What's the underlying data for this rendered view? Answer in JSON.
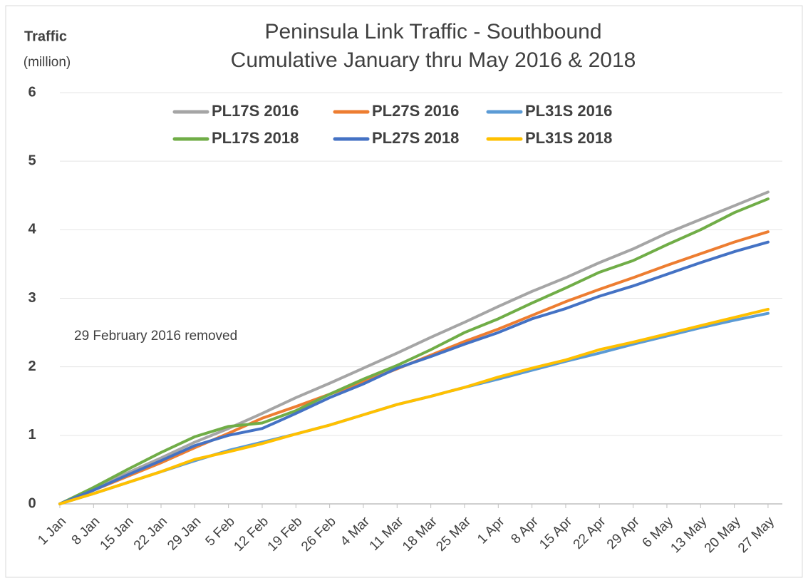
{
  "chart_data": {
    "type": "line",
    "title": "Peninsula Link Traffic - Southbound",
    "subtitle": "Cumulative January thru May 2016 & 2018",
    "y_label": "Traffic",
    "y_label_unit": "(million)",
    "annotation": "29 February 2016 removed",
    "categories": [
      "1 Jan",
      "8 Jan",
      "15 Jan",
      "22 Jan",
      "29 Jan",
      "5 Feb",
      "12 Feb",
      "19 Feb",
      "26 Feb",
      "4 Mar",
      "11 Mar",
      "18 Mar",
      "25 Mar",
      "1 Apr",
      "8 Apr",
      "15 Apr",
      "22 Apr",
      "29 Apr",
      "6 May",
      "13 May",
      "20 May",
      "27 May"
    ],
    "series": [
      {
        "name": "PL17S 2016",
        "color": "#a5a5a5",
        "values": [
          0,
          0.22,
          0.45,
          0.67,
          0.9,
          1.1,
          1.32,
          1.55,
          1.76,
          1.98,
          2.2,
          2.43,
          2.65,
          2.88,
          3.1,
          3.3,
          3.52,
          3.72,
          3.95,
          4.15,
          4.35,
          4.55
        ]
      },
      {
        "name": "PL27S 2016",
        "color": "#ed7d31",
        "values": [
          0,
          0.2,
          0.4,
          0.6,
          0.82,
          1.03,
          1.25,
          1.42,
          1.6,
          1.78,
          1.97,
          2.17,
          2.37,
          2.55,
          2.75,
          2.95,
          3.13,
          3.3,
          3.48,
          3.65,
          3.82,
          3.97
        ]
      },
      {
        "name": "PL31S 2016",
        "color": "#5b9bd5",
        "values": [
          0,
          0.15,
          0.31,
          0.47,
          0.63,
          0.78,
          0.9,
          1.02,
          1.15,
          1.3,
          1.45,
          1.57,
          1.7,
          1.82,
          1.95,
          2.08,
          2.2,
          2.33,
          2.45,
          2.57,
          2.68,
          2.78
        ]
      },
      {
        "name": "PL17S 2018",
        "color": "#70ad47",
        "values": [
          0,
          0.24,
          0.5,
          0.75,
          0.98,
          1.13,
          1.18,
          1.36,
          1.6,
          1.82,
          2.02,
          2.25,
          2.5,
          2.7,
          2.93,
          3.15,
          3.38,
          3.55,
          3.78,
          4.0,
          4.25,
          4.45
        ]
      },
      {
        "name": "PL27S 2018",
        "color": "#4472c4",
        "values": [
          0,
          0.2,
          0.42,
          0.63,
          0.85,
          1.0,
          1.1,
          1.32,
          1.55,
          1.75,
          1.98,
          2.15,
          2.33,
          2.5,
          2.7,
          2.85,
          3.03,
          3.18,
          3.35,
          3.52,
          3.68,
          3.82
        ]
      },
      {
        "name": "PL31S 2018",
        "color": "#ffc000",
        "values": [
          0,
          0.15,
          0.31,
          0.47,
          0.65,
          0.76,
          0.88,
          1.02,
          1.15,
          1.3,
          1.45,
          1.57,
          1.7,
          1.85,
          1.98,
          2.1,
          2.25,
          2.36,
          2.48,
          2.6,
          2.72,
          2.84
        ]
      }
    ],
    "ylim": [
      0,
      6
    ],
    "yticks": [
      0,
      1,
      2,
      3,
      4,
      5,
      6
    ],
    "grid": true
  }
}
